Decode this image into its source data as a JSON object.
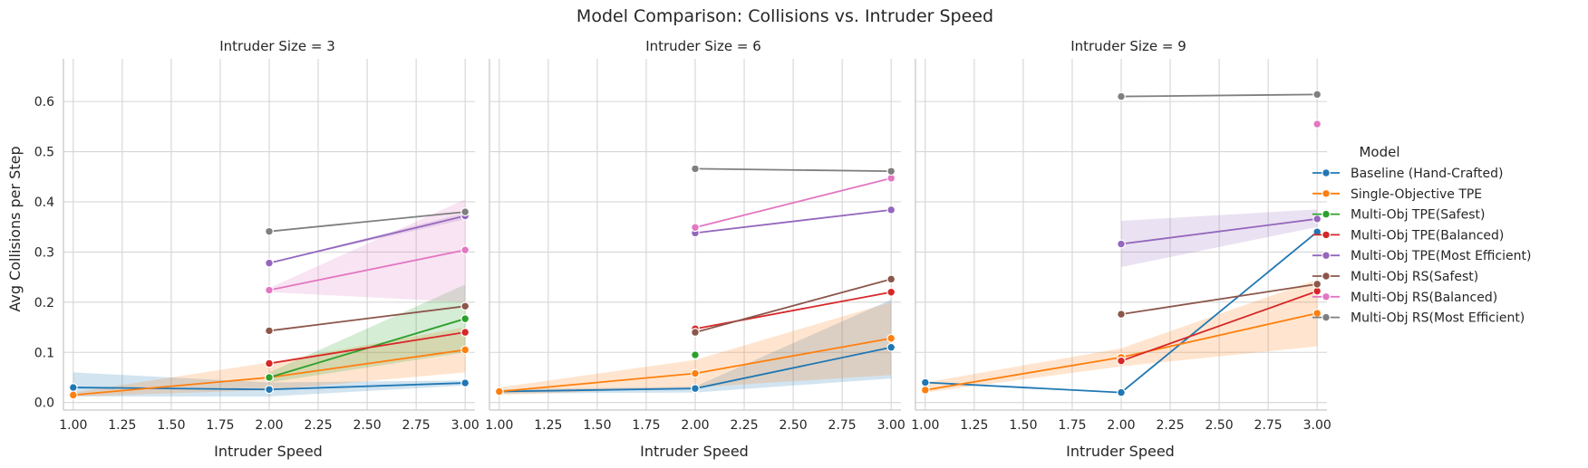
{
  "chart_data": {
    "type": "line",
    "title": "Model Comparison: Collisions vs. Intruder Speed",
    "xlabel": "Intruder Speed",
    "ylabel": "Avg Collisions per Step",
    "xlim": [
      0.95,
      3.05
    ],
    "ylim": [
      -0.015,
      0.685
    ],
    "x_ticks": [
      "1.00",
      "1.25",
      "1.50",
      "1.75",
      "2.00",
      "2.25",
      "2.50",
      "2.75",
      "3.00"
    ],
    "y_ticks": [
      "0.0",
      "0.1",
      "0.2",
      "0.3",
      "0.4",
      "0.5",
      "0.6"
    ],
    "grid": true,
    "legend_title": "Model",
    "legend_position": "right",
    "models": [
      {
        "name": "Baseline (Hand-Crafted)",
        "color": "#1f77b4"
      },
      {
        "name": "Single-Objective TPE",
        "color": "#ff7f0e"
      },
      {
        "name": "Multi-Obj TPE(Safest)",
        "color": "#2ca02c"
      },
      {
        "name": "Multi-Obj TPE(Balanced)",
        "color": "#d62728"
      },
      {
        "name": "Multi-Obj TPE(Most Efficient)",
        "color": "#9467bd"
      },
      {
        "name": "Multi-Obj RS(Safest)",
        "color": "#8c564b"
      },
      {
        "name": "Multi-Obj RS(Balanced)",
        "color": "#e377c2"
      },
      {
        "name": "Multi-Obj RS(Most Efficient)",
        "color": "#7f7f7f"
      }
    ],
    "panels": [
      {
        "title": "Intruder Size = 3",
        "series": [
          {
            "model": 0,
            "x": [
              1,
              2,
              3
            ],
            "y": [
              0.03,
              0.026,
              0.039
            ],
            "ci_low": [
              0.012,
              0.012,
              0.034
            ],
            "ci_high": [
              0.06,
              0.04,
              0.044
            ]
          },
          {
            "model": 1,
            "x": [
              1,
              2,
              3
            ],
            "y": [
              0.015,
              0.05,
              0.105
            ],
            "ci_low": [
              0.012,
              0.025,
              0.06
            ],
            "ci_high": [
              0.02,
              0.08,
              0.15
            ]
          },
          {
            "model": 2,
            "x": [
              2,
              3
            ],
            "y": [
              0.05,
              0.167
            ],
            "ci_low": [
              0.04,
              0.1
            ],
            "ci_high": [
              0.06,
              0.235
            ]
          },
          {
            "model": 3,
            "x": [
              2,
              3
            ],
            "y": [
              0.078,
              0.14
            ],
            "ci_low": [
              0.078,
              0.14
            ],
            "ci_high": [
              0.078,
              0.14
            ]
          },
          {
            "model": 4,
            "x": [
              2,
              3
            ],
            "y": [
              0.278,
              0.372
            ],
            "ci_low": [
              0.278,
              0.365
            ],
            "ci_high": [
              0.278,
              0.378
            ]
          },
          {
            "model": 5,
            "x": [
              2,
              3
            ],
            "y": [
              0.143,
              0.192
            ],
            "ci_low": [
              0.143,
              0.192
            ],
            "ci_high": [
              0.143,
              0.192
            ]
          },
          {
            "model": 6,
            "x": [
              2,
              3
            ],
            "y": [
              0.224,
              0.304
            ],
            "ci_low": [
              0.22,
              0.2
            ],
            "ci_high": [
              0.228,
              0.405
            ]
          },
          {
            "model": 7,
            "x": [
              2,
              3
            ],
            "y": [
              0.341,
              0.38
            ],
            "ci_low": [
              0.341,
              0.38
            ],
            "ci_high": [
              0.341,
              0.38
            ]
          }
        ]
      },
      {
        "title": "Intruder Size = 6",
        "series": [
          {
            "model": 0,
            "x": [
              1,
              2,
              3
            ],
            "y": [
              0.022,
              0.028,
              0.11
            ],
            "ci_low": [
              0.018,
              0.02,
              0.048
            ],
            "ci_high": [
              0.026,
              0.032,
              0.205
            ]
          },
          {
            "model": 1,
            "x": [
              1,
              2,
              3
            ],
            "y": [
              0.022,
              0.058,
              0.128
            ],
            "ci_low": [
              0.015,
              0.03,
              0.055
            ],
            "ci_high": [
              0.03,
              0.085,
              0.2
            ]
          },
          {
            "model": 2,
            "x": [
              2
            ],
            "y": [
              0.095
            ],
            "ci_low": [
              0.095
            ],
            "ci_high": [
              0.095
            ]
          },
          {
            "model": 3,
            "x": [
              2,
              3
            ],
            "y": [
              0.147,
              0.22
            ],
            "ci_low": [
              0.147,
              0.22
            ],
            "ci_high": [
              0.147,
              0.22
            ]
          },
          {
            "model": 4,
            "x": [
              2,
              3
            ],
            "y": [
              0.338,
              0.384
            ],
            "ci_low": [
              0.338,
              0.384
            ],
            "ci_high": [
              0.338,
              0.384
            ]
          },
          {
            "model": 5,
            "x": [
              2,
              3
            ],
            "y": [
              0.14,
              0.246
            ],
            "ci_low": [
              0.14,
              0.246
            ],
            "ci_high": [
              0.14,
              0.246
            ]
          },
          {
            "model": 6,
            "x": [
              2,
              3
            ],
            "y": [
              0.349,
              0.447
            ],
            "ci_low": [
              0.349,
              0.447
            ],
            "ci_high": [
              0.349,
              0.447
            ]
          },
          {
            "model": 7,
            "x": [
              2,
              3
            ],
            "y": [
              0.466,
              0.461
            ],
            "ci_low": [
              0.466,
              0.461
            ],
            "ci_high": [
              0.466,
              0.461
            ]
          }
        ]
      },
      {
        "title": "Intruder Size = 9",
        "series": [
          {
            "model": 0,
            "x": [
              1,
              2,
              3
            ],
            "y": [
              0.04,
              0.02,
              0.34
            ],
            "ci_low": [
              0.04,
              0.02,
              0.34
            ],
            "ci_high": [
              0.04,
              0.02,
              0.34
            ]
          },
          {
            "model": 1,
            "x": [
              1,
              2,
              3
            ],
            "y": [
              0.025,
              0.09,
              0.178
            ],
            "ci_low": [
              0.02,
              0.072,
              0.112
            ],
            "ci_high": [
              0.04,
              0.108,
              0.245
            ]
          },
          {
            "model": 3,
            "x": [
              2,
              3
            ],
            "y": [
              0.083,
              0.222
            ],
            "ci_low": [
              0.083,
              0.222
            ],
            "ci_high": [
              0.083,
              0.222
            ]
          },
          {
            "model": 4,
            "x": [
              2,
              3
            ],
            "y": [
              0.316,
              0.366
            ],
            "ci_low": [
              0.27,
              0.35
            ],
            "ci_high": [
              0.362,
              0.385
            ]
          },
          {
            "model": 5,
            "x": [
              2,
              3
            ],
            "y": [
              0.176,
              0.236
            ],
            "ci_low": [
              0.176,
              0.236
            ],
            "ci_high": [
              0.176,
              0.236
            ]
          },
          {
            "model": 6,
            "x": [
              3
            ],
            "y": [
              0.555
            ],
            "ci_low": [
              0.555
            ],
            "ci_high": [
              0.555
            ]
          },
          {
            "model": 7,
            "x": [
              2,
              3
            ],
            "y": [
              0.61,
              0.614
            ],
            "ci_low": [
              0.61,
              0.614
            ],
            "ci_high": [
              0.61,
              0.614
            ]
          }
        ]
      }
    ]
  }
}
